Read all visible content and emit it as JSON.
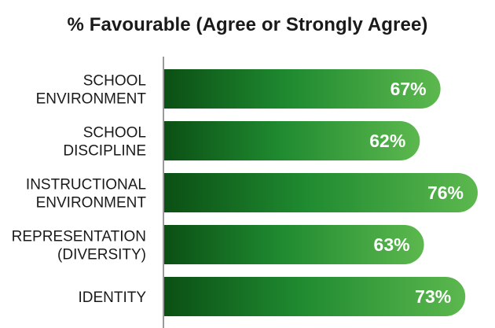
{
  "chart_data": {
    "type": "bar",
    "orientation": "horizontal",
    "title": "% Favourable (Agree or Strongly Agree)",
    "categories": [
      [
        "SCHOOL",
        "ENVIRONMENT"
      ],
      [
        "SCHOOL",
        "DISCIPLINE"
      ],
      [
        "INSTRUCTIONAL",
        "ENVIRONMENT"
      ],
      [
        "REPRESENTATION",
        "(DIVERSITY)"
      ],
      [
        "IDENTITY"
      ]
    ],
    "values": [
      67,
      62,
      76,
      63,
      73
    ],
    "value_labels": [
      "67%",
      "62%",
      "76%",
      "63%",
      "73%"
    ],
    "xlabel": "",
    "ylabel": "",
    "xlim": [
      0,
      76
    ],
    "grid": false,
    "legend": "none",
    "colors": {
      "bar_start": "#0b4f14",
      "bar_mid": "#1f8a30",
      "bar_end": "#5cb84e",
      "axis": "#9a9a9a",
      "text": "#1a1a1a",
      "value_text": "#ffffff"
    }
  }
}
